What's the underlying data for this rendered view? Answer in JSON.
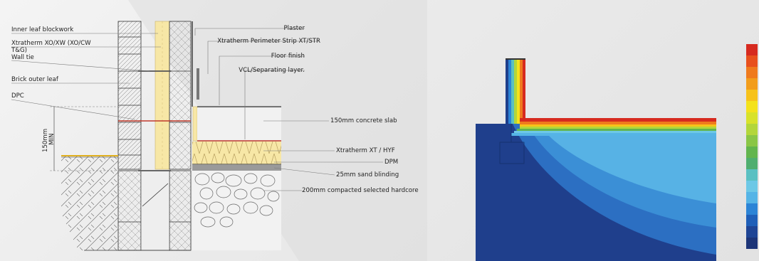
{
  "labels": {
    "inner_leaf_blockwork": "Inner leaf blockwork",
    "xtratherm_xo_xw_line1": "Xtratherm XO/XW (XO/CW",
    "xtratherm_xo_xw_line2": "T&G)",
    "wall_tie": "Wall tie",
    "brick_outer_leaf": "Brick outer leaf",
    "dpc": "DPC",
    "dimension": "150mm",
    "dimension_min": "MIN",
    "plaster": "Plaster",
    "perimeter_strip": "Xtratherm Perimeter Strip XT/STR",
    "floor_finish": "Floor finish",
    "vcl": "VCL/Separating layer.",
    "concrete_slab": "150mm concrete slab",
    "xtratherm_xt_hyf": "Xtratherm XT / HYF",
    "dpm": "DPM",
    "sand_blinding": "25mm sand blinding",
    "hardcore": "200mm compacted selected hardcore"
  },
  "colors": {
    "insulation": "#f7e7a6",
    "dpc_red": "#c0392b",
    "line": "#333333",
    "hot": "#d8351d",
    "cold_deep": "#1f3f8c",
    "cold_mid": "#2c6fc2",
    "cool": "#5db8e8"
  },
  "scale_colors": [
    "#d62a1f",
    "#e8501d",
    "#ef7a1d",
    "#f29d1c",
    "#f7c21a",
    "#f4e21b",
    "#d8e22a",
    "#b3d63a",
    "#8ac646",
    "#62b54e",
    "#4fae6f",
    "#5ac0c2",
    "#6dc8e6",
    "#55b4e6",
    "#2c84d6",
    "#1f5fb8",
    "#1f4595",
    "#1d3578"
  ]
}
